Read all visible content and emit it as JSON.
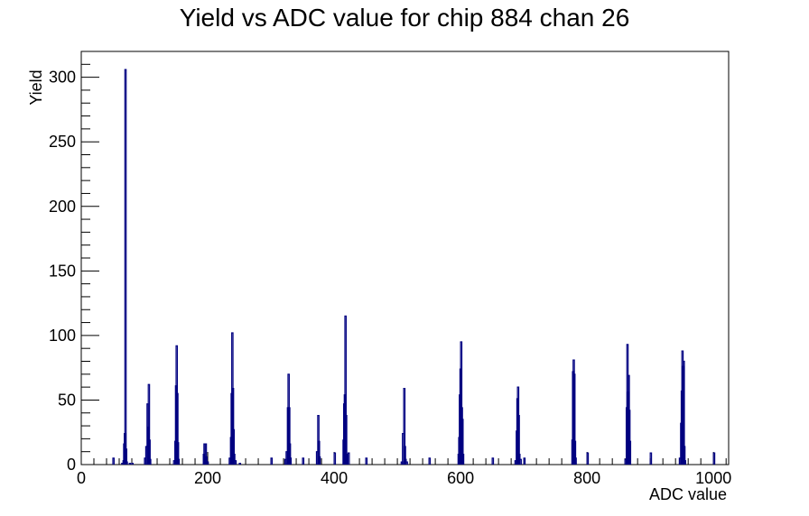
{
  "chart_data": {
    "type": "bar",
    "title": "Yield vs ADC value for chip 884 chan 26",
    "xlabel": "ADC value",
    "ylabel": "Yield",
    "xlim": [
      0,
      1024
    ],
    "ylim": [
      0,
      320
    ],
    "grid": false,
    "x_ticks": [
      0,
      200,
      400,
      600,
      800,
      1000
    ],
    "y_ticks": [
      0,
      50,
      100,
      150,
      200,
      250,
      300
    ],
    "bin_width": 2,
    "line_color": "#000080",
    "series": [
      {
        "points": [
          [
            50,
            5
          ],
          [
            64,
            1
          ],
          [
            66,
            3
          ],
          [
            67,
            16
          ],
          [
            68,
            24
          ],
          [
            69,
            306
          ],
          [
            70,
            12
          ],
          [
            71,
            2
          ],
          [
            76,
            1
          ],
          [
            80,
            1
          ],
          [
            100,
            5
          ],
          [
            102,
            14
          ],
          [
            104,
            47
          ],
          [
            105,
            29
          ],
          [
            106,
            62
          ],
          [
            107,
            19
          ],
          [
            108,
            4
          ],
          [
            146,
            3
          ],
          [
            148,
            18
          ],
          [
            149,
            61
          ],
          [
            150,
            92
          ],
          [
            151,
            55
          ],
          [
            152,
            17
          ],
          [
            153,
            4
          ],
          [
            193,
            8
          ],
          [
            194,
            16
          ],
          [
            196,
            16
          ],
          [
            197,
            6
          ],
          [
            199,
            2
          ],
          [
            234,
            5
          ],
          [
            236,
            21
          ],
          [
            237,
            55
          ],
          [
            238,
            102
          ],
          [
            239,
            59
          ],
          [
            240,
            27
          ],
          [
            241,
            8
          ],
          [
            243,
            3
          ],
          [
            250,
            1
          ],
          [
            300,
            5
          ],
          [
            322,
            4
          ],
          [
            324,
            10
          ],
          [
            326,
            44
          ],
          [
            327,
            70
          ],
          [
            328,
            44
          ],
          [
            329,
            16
          ],
          [
            330,
            5
          ],
          [
            350,
            5
          ],
          [
            372,
            10
          ],
          [
            374,
            38
          ],
          [
            375,
            18
          ],
          [
            376,
            6
          ],
          [
            400,
            9
          ],
          [
            414,
            19
          ],
          [
            415,
            47
          ],
          [
            416,
            54
          ],
          [
            417,
            115
          ],
          [
            418,
            38
          ],
          [
            419,
            8
          ],
          [
            422,
            9
          ],
          [
            450,
            5
          ],
          [
            506,
            2
          ],
          [
            508,
            24
          ],
          [
            510,
            59
          ],
          [
            511,
            14
          ],
          [
            512,
            4
          ],
          [
            514,
            2
          ],
          [
            550,
            5
          ],
          [
            596,
            8
          ],
          [
            597,
            21
          ],
          [
            598,
            54
          ],
          [
            599,
            74
          ],
          [
            600,
            95
          ],
          [
            601,
            44
          ],
          [
            602,
            35
          ],
          [
            603,
            8
          ],
          [
            650,
            5
          ],
          [
            686,
            3
          ],
          [
            688,
            26
          ],
          [
            689,
            51
          ],
          [
            690,
            60
          ],
          [
            691,
            38
          ],
          [
            692,
            8
          ],
          [
            694,
            4
          ],
          [
            700,
            5
          ],
          [
            776,
            19
          ],
          [
            777,
            72
          ],
          [
            778,
            81
          ],
          [
            779,
            70
          ],
          [
            780,
            18
          ],
          [
            781,
            5
          ],
          [
            800,
            9
          ],
          [
            860,
            4
          ],
          [
            862,
            44
          ],
          [
            863,
            93
          ],
          [
            864,
            56
          ],
          [
            865,
            69
          ],
          [
            866,
            42
          ],
          [
            867,
            18
          ],
          [
            900,
            9
          ],
          [
            946,
            5
          ],
          [
            948,
            32
          ],
          [
            949,
            57
          ],
          [
            950,
            88
          ],
          [
            951,
            76
          ],
          [
            952,
            80
          ],
          [
            953,
            14
          ],
          [
            954,
            3
          ],
          [
            1000,
            9
          ]
        ]
      }
    ]
  }
}
